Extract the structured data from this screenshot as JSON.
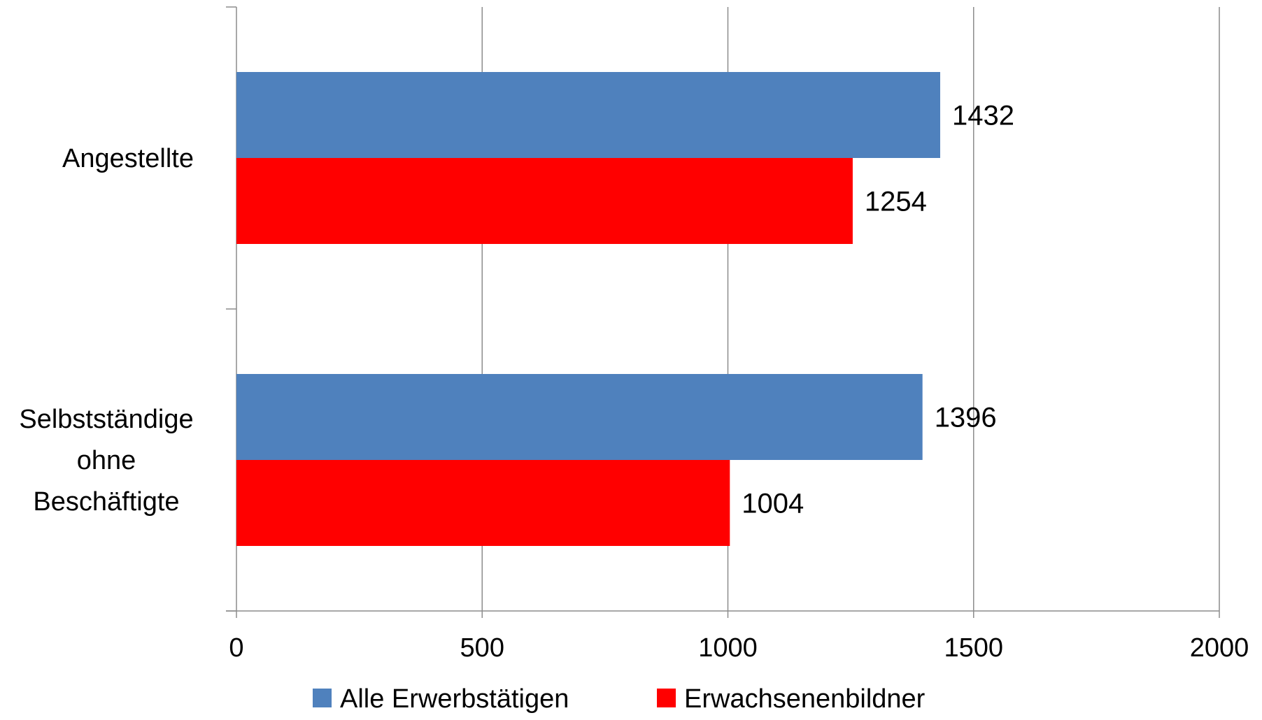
{
  "chart_data": {
    "type": "bar",
    "orientation": "horizontal",
    "categories": [
      "Angestellte",
      "Selbstständige ohne Beschäftigte"
    ],
    "category_lines": [
      [
        "Angestellte"
      ],
      [
        "Selbstständige",
        "ohne",
        "Beschäftigte"
      ]
    ],
    "series": [
      {
        "name": "Alle Erwerbstätigen",
        "color": "#4f81bd",
        "values": [
          1432,
          1396
        ]
      },
      {
        "name": "Erwachsenenbildner",
        "color": "#ff0000",
        "values": [
          1254,
          1004
        ]
      }
    ],
    "xlim": [
      0,
      2000
    ],
    "xticks": [
      0,
      500,
      1000,
      1500,
      2000
    ],
    "grid": true,
    "legend_position": "bottom",
    "data_labels": true
  }
}
